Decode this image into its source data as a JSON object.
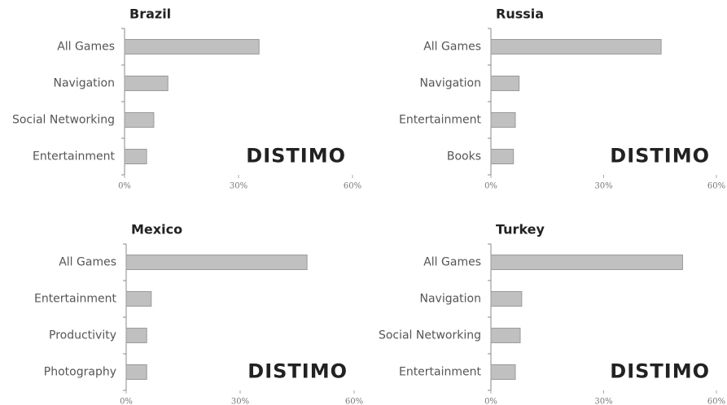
{
  "chart_data": [
    {
      "type": "bar",
      "orientation": "horizontal",
      "title": "Brazil",
      "categories": [
        "All Games",
        "Navigation",
        "Social Networking",
        "Entertainment"
      ],
      "values": [
        35.4,
        11.4,
        7.7,
        5.8
      ],
      "color": "#c0c0c0",
      "xlim": [
        0,
        60
      ],
      "xticks": [
        {
          "value": 0,
          "label": "0%"
        },
        {
          "value": 30,
          "label": "30%"
        },
        {
          "value": 60,
          "label": "60%"
        }
      ],
      "logo": "DISTIMO"
    },
    {
      "type": "bar",
      "orientation": "horizontal",
      "title": "Russia",
      "categories": [
        "All Games",
        "Navigation",
        "Entertainment",
        "Books"
      ],
      "values": [
        45.3,
        7.5,
        6.5,
        6
      ],
      "color": "#c0c0c0",
      "xlim": [
        0,
        60
      ],
      "xticks": [
        {
          "value": 0,
          "label": "0%"
        },
        {
          "value": 30,
          "label": "30%"
        },
        {
          "value": 60,
          "label": "60%"
        }
      ],
      "logo": "DISTIMO"
    },
    {
      "type": "bar",
      "orientation": "horizontal",
      "title": "Mexico",
      "categories": [
        "All Games",
        "Entertainment",
        "Productivity",
        "Photography"
      ],
      "values": [
        47.6,
        6.6,
        5.4,
        5.4
      ],
      "color": "#c0c0c0",
      "xlim": [
        0,
        60
      ],
      "xticks": [
        {
          "value": 0,
          "label": "0%"
        },
        {
          "value": 30,
          "label": "30%"
        },
        {
          "value": 60,
          "label": "60%"
        }
      ],
      "logo": "DISTIMO"
    },
    {
      "type": "bar",
      "orientation": "horizontal",
      "title": "Turkey",
      "categories": [
        "All Games",
        "Navigation",
        "Social Networking",
        "Entertainment"
      ],
      "values": [
        51,
        8.2,
        7.8,
        6.5
      ],
      "color": "#c0c0c0",
      "xlim": [
        0,
        60
      ],
      "xticks": [
        {
          "value": 0,
          "label": "0%"
        },
        {
          "value": 30,
          "label": "30%"
        },
        {
          "value": 60,
          "label": "60%"
        }
      ],
      "logo": "DISTIMO"
    }
  ]
}
